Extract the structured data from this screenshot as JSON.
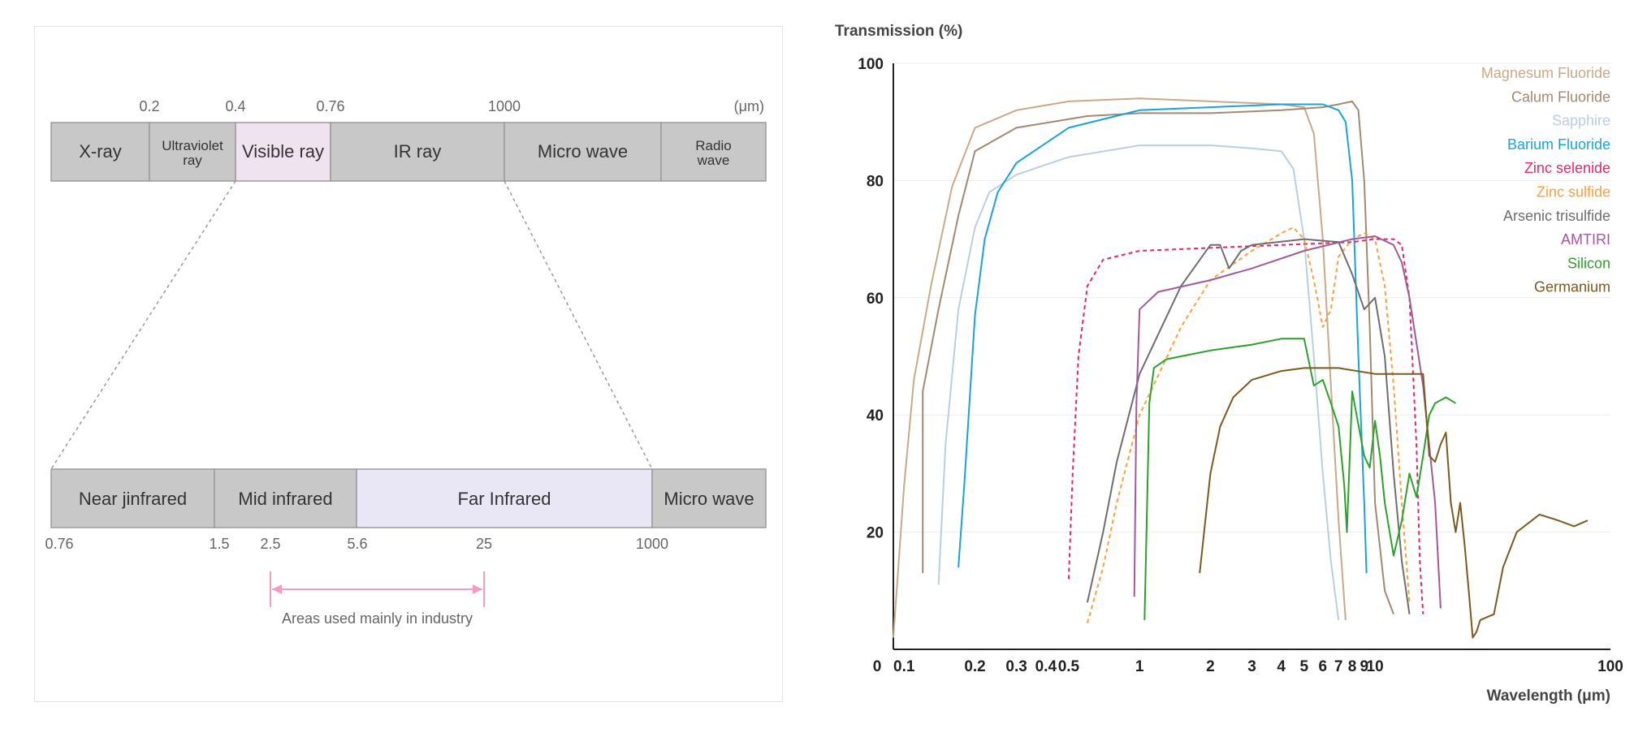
{
  "spectrum": {
    "top_unit": "(μm)",
    "top_ticks": [
      {
        "label": "0.2"
      },
      {
        "label": "0.4"
      },
      {
        "label": "0.76"
      },
      {
        "label": "1000"
      }
    ],
    "top_bands": [
      {
        "lines": [
          "X-ray"
        ],
        "fill": "#c8c8c8"
      },
      {
        "lines": [
          "Ultraviolet",
          "ray"
        ],
        "fill": "#c8c8c8"
      },
      {
        "lines": [
          "Visible ray"
        ],
        "fill": "#efe3f0"
      },
      {
        "lines": [
          "IR ray"
        ],
        "fill": "#c8c8c8"
      },
      {
        "lines": [
          "Micro wave"
        ],
        "fill": "#c8c8c8"
      },
      {
        "lines": [
          "Radio",
          "wave"
        ],
        "fill": "#c8c8c8"
      }
    ],
    "bottom_bands": [
      {
        "lines": [
          "Near jinfrared"
        ],
        "fill": "#c8c8c8"
      },
      {
        "lines": [
          "Mid infrared"
        ],
        "fill": "#c8c8c8"
      },
      {
        "lines": [
          "Far Infrared"
        ],
        "fill": "#e9e7f5"
      },
      {
        "lines": [
          "Micro wave"
        ],
        "fill": "#c8c8c8"
      }
    ],
    "bottom_ticks": [
      {
        "label": "0.76"
      },
      {
        "label": "1.5"
      },
      {
        "label": "2.5"
      },
      {
        "label": "5.6"
      },
      {
        "label": "25"
      },
      {
        "label": "1000"
      }
    ],
    "industry_label": "Areas used mainly in industry",
    "industry_range": [
      "2.5",
      "25"
    ],
    "industry_color": "#f39cc0"
  },
  "chart_data": {
    "type": "line",
    "title": "",
    "ylabel": "Transmission (%)",
    "xlabel": "Wavelength (μm)",
    "x_scale": "log",
    "xlim": [
      0.09,
      100
    ],
    "ylim": [
      0,
      100
    ],
    "x_ticks": [
      "0",
      "0.1",
      "0.2",
      "0.3",
      "0.4",
      "0.5",
      "1",
      "2",
      "3",
      "4",
      "5",
      "6",
      "7",
      "8",
      "9",
      "10",
      "100"
    ],
    "x_tick_values": [
      null,
      0.1,
      0.2,
      0.3,
      0.4,
      0.5,
      1,
      2,
      3,
      4,
      5,
      6,
      7,
      8,
      9,
      10,
      100
    ],
    "y_ticks": [
      20,
      40,
      60,
      80,
      100
    ],
    "y_tick_labels": [
      "20",
      "40",
      "60",
      "80",
      "100"
    ],
    "grid": "horizontal",
    "legend_placement": "top-right",
    "series": [
      {
        "name": "Magnesum Fluoride",
        "color": "#c9a98a",
        "dash": false,
        "points": [
          [
            0.09,
            2
          ],
          [
            0.1,
            28
          ],
          [
            0.11,
            46
          ],
          [
            0.13,
            62
          ],
          [
            0.16,
            79
          ],
          [
            0.2,
            89
          ],
          [
            0.3,
            92
          ],
          [
            0.5,
            93.5
          ],
          [
            1,
            94
          ],
          [
            2,
            93.5
          ],
          [
            4,
            93
          ],
          [
            5,
            92.5
          ],
          [
            5.5,
            88
          ],
          [
            6,
            70
          ],
          [
            6.5,
            45
          ],
          [
            7,
            22
          ],
          [
            7.5,
            5
          ]
        ]
      },
      {
        "name": "Calum Fluoride",
        "color": "#a08a72",
        "dash": false,
        "points": [
          [
            0.12,
            13
          ],
          [
            0.12,
            44
          ],
          [
            0.14,
            58
          ],
          [
            0.17,
            74
          ],
          [
            0.2,
            85
          ],
          [
            0.3,
            89
          ],
          [
            0.6,
            91
          ],
          [
            1,
            91.5
          ],
          [
            2,
            91.5
          ],
          [
            4,
            92
          ],
          [
            6,
            92.5
          ],
          [
            7,
            93
          ],
          [
            8,
            93.5
          ],
          [
            8.5,
            92
          ],
          [
            9,
            80
          ],
          [
            9.5,
            55
          ],
          [
            10,
            25
          ],
          [
            11,
            10
          ],
          [
            12,
            6
          ]
        ]
      },
      {
        "name": "Sapphire",
        "color": "#b9cfe0",
        "dash": false,
        "points": [
          [
            0.14,
            11
          ],
          [
            0.15,
            35
          ],
          [
            0.17,
            58
          ],
          [
            0.2,
            72
          ],
          [
            0.23,
            78
          ],
          [
            0.3,
            81
          ],
          [
            0.5,
            84
          ],
          [
            1,
            86
          ],
          [
            2,
            86
          ],
          [
            3,
            85.5
          ],
          [
            4,
            85
          ],
          [
            4.5,
            82
          ],
          [
            5,
            70
          ],
          [
            5.5,
            50
          ],
          [
            6,
            30
          ],
          [
            6.5,
            15
          ],
          [
            7,
            5
          ]
        ]
      },
      {
        "name": "Barium Fluoride",
        "color": "#1aa3d8",
        "dash": false,
        "points": [
          [
            0.17,
            14
          ],
          [
            0.18,
            28
          ],
          [
            0.2,
            57
          ],
          [
            0.22,
            70
          ],
          [
            0.25,
            78
          ],
          [
            0.3,
            83
          ],
          [
            0.5,
            89
          ],
          [
            1,
            92
          ],
          [
            2,
            92.5
          ],
          [
            4,
            93
          ],
          [
            6,
            93
          ],
          [
            7,
            92
          ],
          [
            7.5,
            90
          ],
          [
            8,
            80
          ],
          [
            8.5,
            50
          ],
          [
            9,
            25
          ],
          [
            9.2,
            13
          ]
        ]
      },
      {
        "name": "Zinc selenide",
        "color": "#e3266e",
        "dash": true,
        "points": [
          [
            0.5,
            12
          ],
          [
            0.52,
            30
          ],
          [
            0.55,
            50
          ],
          [
            0.6,
            62
          ],
          [
            0.7,
            66.5
          ],
          [
            1,
            68
          ],
          [
            2,
            68.5
          ],
          [
            4,
            69
          ],
          [
            8,
            69.5
          ],
          [
            10,
            70
          ],
          [
            12,
            70
          ],
          [
            13,
            69
          ],
          [
            14,
            60
          ],
          [
            15,
            35
          ],
          [
            15.5,
            15
          ],
          [
            16,
            6
          ]
        ]
      },
      {
        "name": "Zinc sulfide",
        "color": "#f7a03f",
        "dash": true,
        "points": [
          [
            0.6,
            4.5
          ],
          [
            0.7,
            14
          ],
          [
            0.8,
            25
          ],
          [
            1,
            40
          ],
          [
            1.5,
            55
          ],
          [
            2,
            63
          ],
          [
            3,
            68
          ],
          [
            4,
            71
          ],
          [
            4.5,
            72
          ],
          [
            5,
            70
          ],
          [
            5.5,
            63
          ],
          [
            6,
            55
          ],
          [
            6.5,
            58
          ],
          [
            7,
            67
          ],
          [
            8,
            70
          ],
          [
            9,
            71
          ],
          [
            10,
            70
          ],
          [
            11,
            62
          ],
          [
            12,
            45
          ],
          [
            13,
            25
          ],
          [
            14,
            8
          ]
        ]
      },
      {
        "name": "Arsenic trisulfide",
        "color": "#6e6e6e",
        "dash": false,
        "points": [
          [
            0.6,
            8
          ],
          [
            0.7,
            20
          ],
          [
            0.8,
            32
          ],
          [
            1,
            47
          ],
          [
            1.5,
            62
          ],
          [
            2,
            69
          ],
          [
            2.2,
            69
          ],
          [
            2.4,
            65
          ],
          [
            2.7,
            68
          ],
          [
            3,
            69
          ],
          [
            5,
            70
          ],
          [
            7,
            69.5
          ],
          [
            8,
            64
          ],
          [
            9,
            58
          ],
          [
            10,
            60
          ],
          [
            11,
            50
          ],
          [
            12,
            30
          ],
          [
            13,
            15
          ],
          [
            14,
            6
          ]
        ]
      },
      {
        "name": "AMTIRI",
        "color": "#a05a9c",
        "dash": false,
        "points": [
          [
            0.95,
            9
          ],
          [
            0.97,
            42
          ],
          [
            1,
            58
          ],
          [
            1.2,
            61
          ],
          [
            2,
            63
          ],
          [
            3,
            65
          ],
          [
            5,
            68
          ],
          [
            8,
            70
          ],
          [
            10,
            70.5
          ],
          [
            12,
            69
          ],
          [
            13,
            66
          ],
          [
            14,
            60
          ],
          [
            16,
            45
          ],
          [
            18,
            25
          ],
          [
            19,
            7
          ]
        ]
      },
      {
        "name": "Silicon",
        "color": "#2ca02c",
        "dash": false,
        "points": [
          [
            1.05,
            5
          ],
          [
            1.1,
            42
          ],
          [
            1.15,
            48
          ],
          [
            1.3,
            49.5
          ],
          [
            1.5,
            50
          ],
          [
            2,
            51
          ],
          [
            3,
            52
          ],
          [
            4,
            53
          ],
          [
            5,
            53
          ],
          [
            5.5,
            45
          ],
          [
            6,
            46
          ],
          [
            6.5,
            42
          ],
          [
            7,
            38
          ],
          [
            7.4,
            28
          ],
          [
            7.6,
            20
          ],
          [
            8,
            44
          ],
          [
            9,
            33
          ],
          [
            9.5,
            31
          ],
          [
            10,
            39
          ],
          [
            10.5,
            33
          ],
          [
            11,
            25
          ],
          [
            12,
            16
          ],
          [
            13,
            22
          ],
          [
            14,
            30
          ],
          [
            15,
            26
          ],
          [
            16,
            33
          ],
          [
            17,
            40
          ],
          [
            18,
            42
          ],
          [
            20,
            43
          ],
          [
            22,
            42
          ]
        ]
      },
      {
        "name": "Germanium",
        "color": "#7a5a1f",
        "dash": false,
        "points": [
          [
            1.8,
            13
          ],
          [
            2,
            30
          ],
          [
            2.2,
            38
          ],
          [
            2.5,
            43
          ],
          [
            3,
            46
          ],
          [
            4,
            47.5
          ],
          [
            5,
            48
          ],
          [
            7,
            48
          ],
          [
            10,
            47
          ],
          [
            15,
            47
          ],
          [
            16,
            47
          ],
          [
            16.5,
            40
          ],
          [
            17,
            33
          ],
          [
            18,
            32
          ],
          [
            19,
            35
          ],
          [
            20,
            37
          ],
          [
            21,
            25
          ],
          [
            22,
            20
          ],
          [
            23,
            25
          ],
          [
            24,
            18
          ],
          [
            25,
            10
          ],
          [
            26,
            2
          ],
          [
            27,
            3
          ],
          [
            28,
            5
          ],
          [
            32,
            6
          ],
          [
            35,
            14
          ],
          [
            40,
            20
          ],
          [
            50,
            23
          ],
          [
            60,
            22
          ],
          [
            70,
            21
          ],
          [
            80,
            22
          ]
        ]
      }
    ]
  }
}
